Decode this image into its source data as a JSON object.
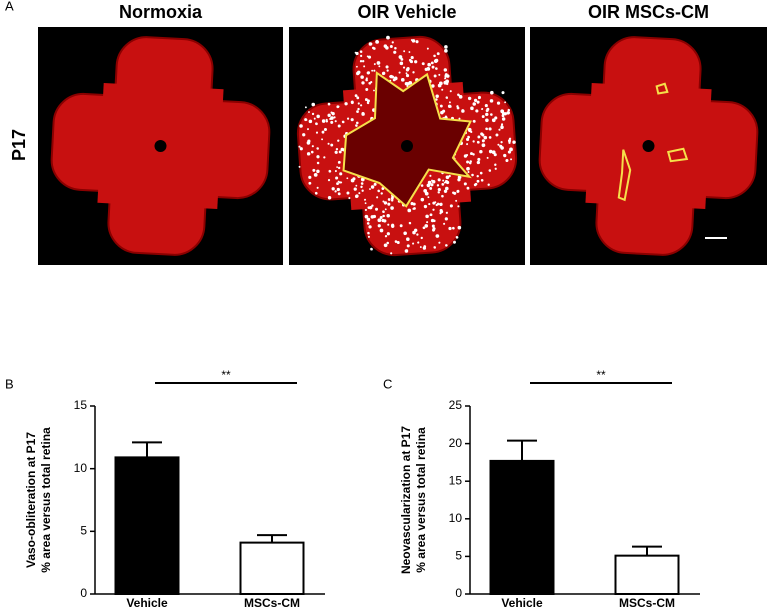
{
  "figure": {
    "panel_label": "A",
    "row_label": "P17",
    "titles": [
      "Normoxia",
      "OIR Vehicle",
      "OIR MSCs-CM"
    ]
  },
  "chart_data": [
    {
      "type": "bar",
      "panel_label": "B",
      "y_label": [
        "Vaso-obliteration at P17",
        "% area versus total retina"
      ],
      "categories": [
        "Vehicle",
        "MSCs-CM"
      ],
      "values": [
        10.9,
        4.1
      ],
      "errors": [
        1.2,
        0.6
      ],
      "colors": [
        "#000000",
        "#ffffff"
      ],
      "ylim": [
        0,
        15
      ],
      "yticks": [
        0,
        5,
        10,
        15
      ],
      "significance": "**"
    },
    {
      "type": "bar",
      "panel_label": "C",
      "y_label": [
        "Neovascularization at P17",
        "% area versus total retina"
      ],
      "categories": [
        "Vehicle",
        "MSCs-CM"
      ],
      "values": [
        17.7,
        5.1
      ],
      "errors": [
        2.7,
        1.2
      ],
      "colors": [
        "#000000",
        "#ffffff"
      ],
      "ylim": [
        0,
        25
      ],
      "yticks": [
        0,
        5,
        10,
        15,
        20,
        25
      ],
      "significance": "**"
    }
  ]
}
